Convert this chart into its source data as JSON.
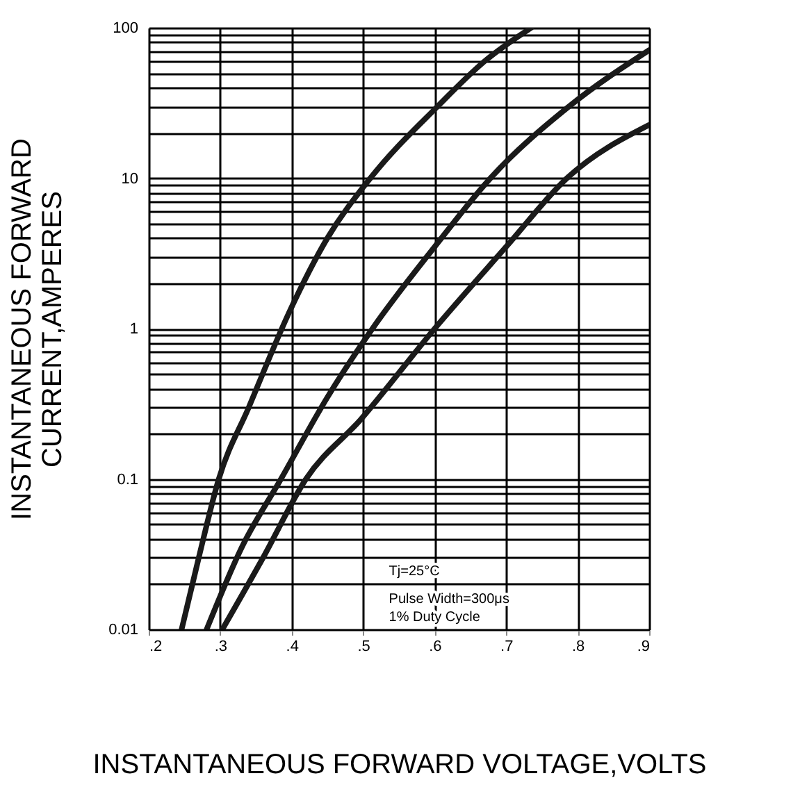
{
  "chart_data": {
    "type": "line",
    "xlabel": "INSTANTANEOUS FORWARD VOLTAGE,VOLTS",
    "ylabel": "INSTANTANEOUS FORWARD\nCURRENT,AMPERES",
    "series": [
      {
        "color": "#1a1a1a",
        "x": [
          0.246,
          0.27,
          0.298,
          0.34,
          0.397,
          0.45,
          0.51,
          0.604,
          0.67,
          0.735
        ],
        "values": [
          0.01,
          0.03,
          0.1,
          0.3,
          1.3,
          4,
          10,
          30,
          60,
          100
        ]
      },
      {
        "color": "#1a1a1a",
        "x": [
          0.281,
          0.33,
          0.385,
          0.45,
          0.513,
          0.6,
          0.678,
          0.788,
          0.9
        ],
        "values": [
          0.01,
          0.035,
          0.1,
          0.35,
          1,
          3.5,
          10,
          30,
          71
        ]
      },
      {
        "color": "#1a1a1a",
        "x": [
          0.303,
          0.36,
          0.42,
          0.497,
          0.6,
          0.7,
          0.785,
          0.9
        ],
        "values": [
          0.01,
          0.03,
          0.1,
          0.25,
          1,
          3.5,
          10,
          22.6
        ]
      }
    ],
    "xlim": [
      0.2,
      0.9
    ],
    "ylim": [
      0.01,
      100
    ],
    "log": "y",
    "grid": true,
    "line_style": "solid",
    "marker": "none",
    "xticks": [
      {
        "value": 0.2,
        "label": ".2"
      },
      {
        "value": 0.3,
        "label": ".3"
      },
      {
        "value": 0.4,
        "label": ".4"
      },
      {
        "value": 0.5,
        "label": ".5"
      },
      {
        "value": 0.6,
        "label": ".6"
      },
      {
        "value": 0.7,
        "label": ".7"
      },
      {
        "value": 0.8,
        "label": ".8"
      },
      {
        "value": 0.9,
        "label": ".9"
      }
    ],
    "yticks": [
      0.01,
      {
        "value": 0.02,
        "label": null
      },
      {
        "value": 0.03,
        "label": null
      },
      {
        "value": 0.04,
        "label": null
      },
      {
        "value": 0.05,
        "label": null
      },
      {
        "value": 0.06,
        "label": null
      },
      {
        "value": 0.07,
        "label": null
      },
      {
        "value": 0.08,
        "label": null
      },
      {
        "value": 0.09,
        "label": null
      },
      0.1,
      {
        "value": 0.2,
        "label": null
      },
      {
        "value": 0.3,
        "label": null
      },
      {
        "value": 0.4,
        "label": null
      },
      {
        "value": 0.5,
        "label": null
      },
      {
        "value": 0.6,
        "label": null
      },
      {
        "value": 0.7,
        "label": null
      },
      {
        "value": 0.8,
        "label": null
      },
      {
        "value": 0.9,
        "label": null
      },
      1,
      {
        "value": 2,
        "label": null
      },
      {
        "value": 3,
        "label": null
      },
      {
        "value": 4,
        "label": null
      },
      {
        "value": 5,
        "label": null
      },
      {
        "value": 6,
        "label": null
      },
      {
        "value": 7,
        "label": null
      },
      {
        "value": 8,
        "label": null
      },
      {
        "value": 9,
        "label": null
      },
      10,
      {
        "value": 20,
        "label": null
      },
      {
        "value": 30,
        "label": null
      },
      {
        "value": 40,
        "label": null
      },
      {
        "value": 50,
        "label": null
      },
      {
        "value": 60,
        "label": null
      },
      {
        "value": 70,
        "label": null
      },
      {
        "value": 80,
        "label": null
      },
      {
        "value": 90,
        "label": null
      },
      100
    ],
    "annotations": [
      "Tj=25°C",
      "Pulse Width=300μs",
      "1% Duty Cycle"
    ]
  }
}
